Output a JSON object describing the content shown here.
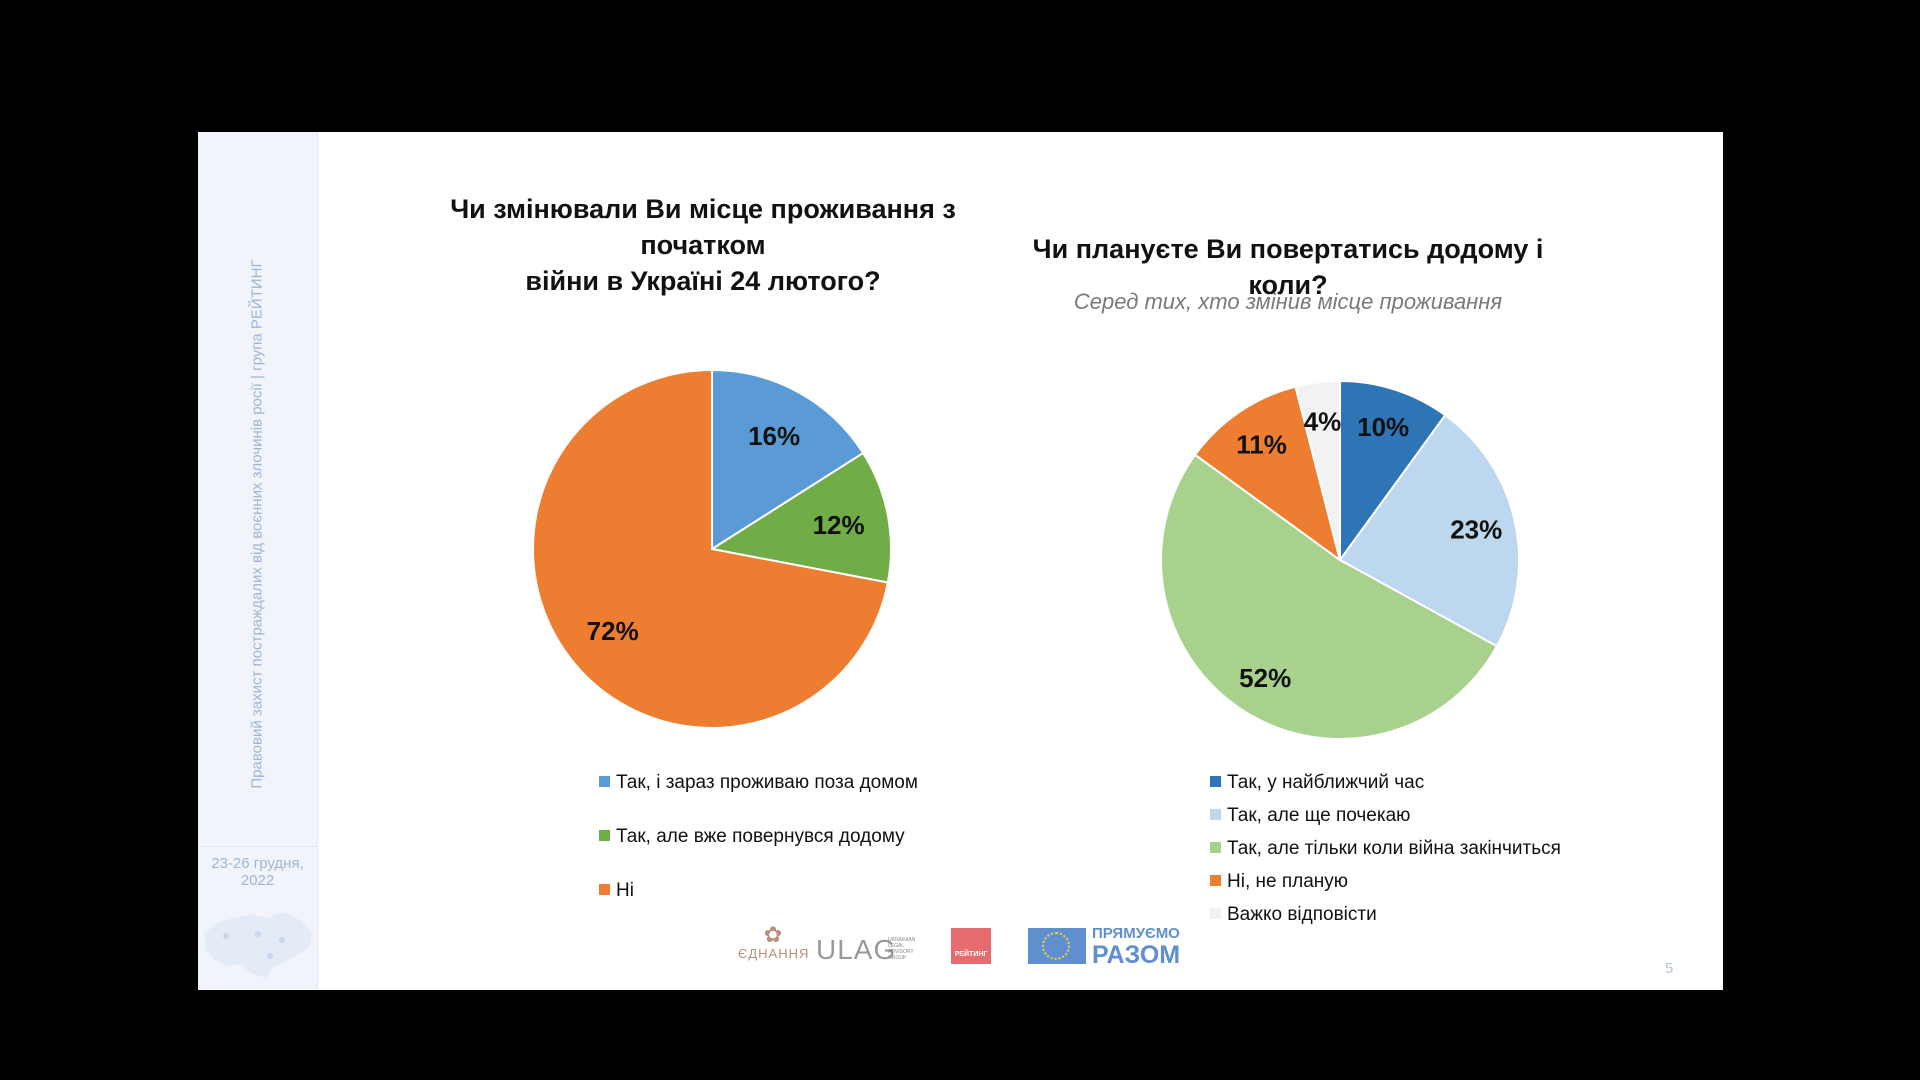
{
  "sidebar": {
    "vertical_text": "Правовий захист постраждалих від воєнних злочинів росії | група РЕЙТИНГ",
    "date_line1": "23-26 грудня,",
    "date_line2": "2022"
  },
  "page_number": "5",
  "logos": {
    "ednannya": "ЄДНАННЯ",
    "ulag": "ULAG",
    "ulag_small": "UKRAINIAN LEGAL ADVISORY GROUP",
    "rating": "РЕЙТИНГ",
    "pryamuyemo_line1": "ПРЯМУЄМО",
    "pryamuyemo_line2": "РАЗОМ"
  },
  "chart_data": [
    {
      "type": "pie",
      "title_line1": "Чи змінювали Ви місце проживання з початком",
      "title_line2": "війни в Україні 24 лютого?",
      "categories": [
        "Так, і зараз проживаю поза домом",
        "Так, але вже повернувся додому",
        "Ні"
      ],
      "values": [
        16,
        12,
        72
      ],
      "labels": [
        "16%",
        "12%",
        "72%"
      ],
      "colors": [
        "#5b9bd5",
        "#70ad47",
        "#ed7d31"
      ],
      "legend": "bottom"
    },
    {
      "type": "pie",
      "title": "Чи плануєте Ви повертатись додому і коли?",
      "subtitle": "Серед тих, хто змінив місце проживання",
      "categories": [
        "Так, у найближчий час",
        "Так, але ще почекаю",
        "Так, але тільки коли війна закінчиться",
        "Ні, не планую",
        "Важко відповісти"
      ],
      "values": [
        10,
        23,
        52,
        11,
        4
      ],
      "labels": [
        "10%",
        "23%",
        "52%",
        "11%",
        "4%"
      ],
      "colors": [
        "#2e75b6",
        "#bdd7ee",
        "#a9d18e",
        "#ed7d31",
        "#f2f2f2"
      ],
      "legend": "bottom"
    }
  ]
}
